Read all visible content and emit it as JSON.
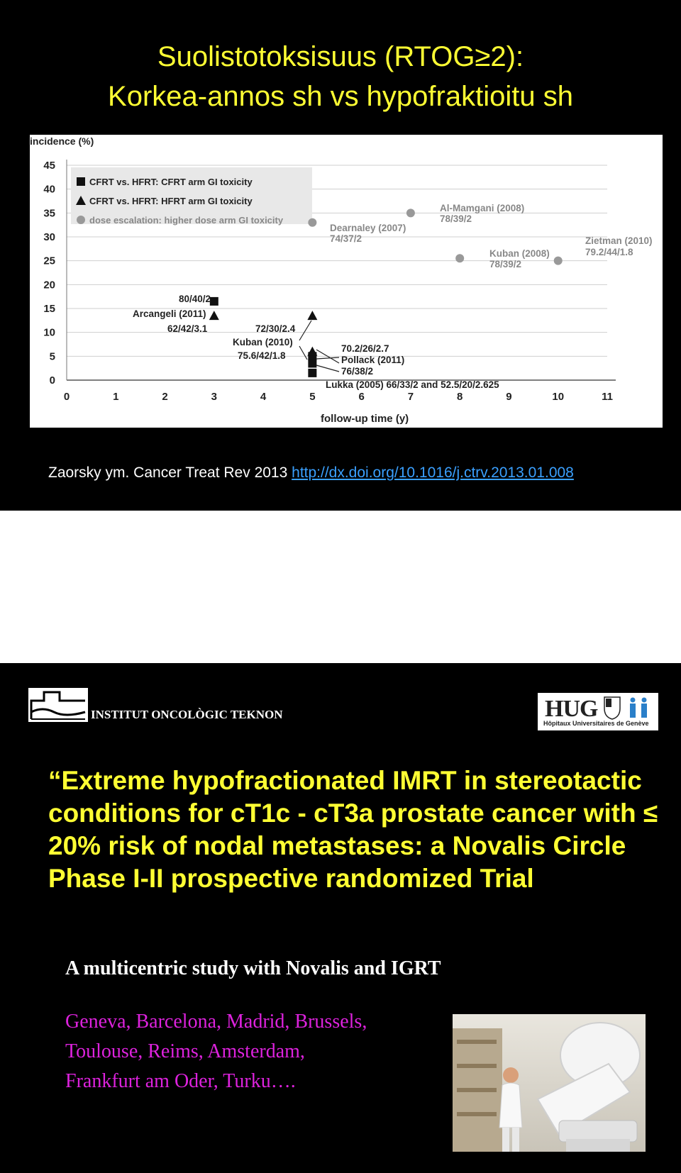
{
  "slide1": {
    "title_line1": "Suolistotoksisuus (RTOG≥2):",
    "title_line2": "Korkea-annos sh vs hypofraktioitu sh",
    "citation_text": "Zaorsky ym. Cancer Treat Rev 2013 ",
    "citation_link": "http://dx.doi.org/10.1016/j.ctrv.2013.01.008"
  },
  "chart_data": {
    "type": "scatter",
    "ylabel": "incidence (%)",
    "xlabel": "follow-up time (y)",
    "xlim": [
      0,
      11
    ],
    "ylim": [
      0,
      45
    ],
    "xticks": [
      0,
      1,
      2,
      3,
      4,
      5,
      6,
      7,
      8,
      9,
      10,
      11
    ],
    "yticks": [
      0,
      5,
      10,
      15,
      20,
      25,
      30,
      35,
      40,
      45
    ],
    "grid": "horizontal",
    "legend_placement": "top-left",
    "series": [
      {
        "name": "CFRT vs. HFRT: CFRT arm GI toxicity",
        "marker": "square",
        "points": [
          {
            "x": 3,
            "y": 16.5
          },
          {
            "x": 5,
            "y": 5
          },
          {
            "x": 5,
            "y": 3.5
          },
          {
            "x": 5,
            "y": 1.5
          }
        ]
      },
      {
        "name": "CFRT vs. HFRT: HFRT arm GI toxicity",
        "marker": "triangle",
        "points": [
          {
            "x": 3,
            "y": 13.5
          },
          {
            "x": 5,
            "y": 13.5
          },
          {
            "x": 5,
            "y": 6
          }
        ]
      },
      {
        "name": "dose escalation:  higher dose arm GI toxicity",
        "marker": "circle",
        "points": [
          {
            "x": 5,
            "y": 33
          },
          {
            "x": 7,
            "y": 35
          },
          {
            "x": 8,
            "y": 25.5
          },
          {
            "x": 10,
            "y": 25
          }
        ]
      }
    ],
    "annotations": [
      "80/40/2",
      "Arcangeli (2011)",
      "62/42/3.1",
      "72/30/2.4",
      "Kuban (2010)",
      "75.6/42/1.8",
      "70.2/26/2.7",
      "Pollack (2011)",
      "76/38/2",
      "Lukka (2005) 66/33/2 and 52.5/20/2.625",
      "Dearnaley (2007)",
      "74/37/2",
      "Al-Mamgani (2008)",
      "78/39/2",
      "Kuban (2008)",
      "78/39/2",
      "Zietman (2010)",
      "79.2/44/1.8"
    ]
  },
  "slide2": {
    "institute_name": "INSTITUT ONCOLÒGIC TEKNON",
    "hug_logo_text": "HUG",
    "hug_logo_subtitle": "Hôpitaux Universitaires de Genève",
    "title": "“Extreme hypofractionated IMRT in stereotactic conditions for cT1c - cT3a prostate cancer with ≤ 20% risk of nodal metastases: a Novalis Circle Phase I-II prospective  randomized Trial",
    "subtitle": "A multicentric study with Novalis and IGRT",
    "cities_line1": "Geneva, Barcelona, Madrid, Brussels,",
    "cities_line2": "Toulouse, Reims, Amsterdam,",
    "cities_line3": "Frankfurt am Oder, Turku…."
  },
  "colors": {
    "title_yellow": "#ffff33",
    "cities_magenta": "#dd22dd",
    "link_blue": "#3aa0ff"
  }
}
